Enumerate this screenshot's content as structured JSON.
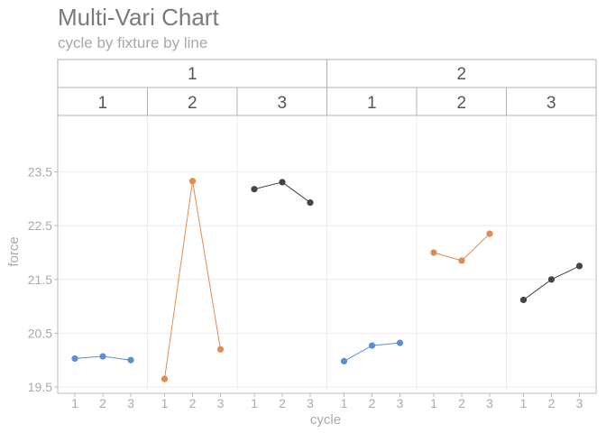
{
  "title": "Multi-Vari Chart",
  "subtitle": "cycle by fixture by line",
  "colors": {
    "fixture_1": "#5b8ed6",
    "fixture_2": "#e08b4f",
    "fixture_3": "#444444",
    "grid": "#ececec",
    "strip_border": "#b0b0b0",
    "text": "#aaaaaa"
  },
  "chart_data": {
    "type": "line",
    "title": "Multi-Vari Chart",
    "subtitle": "cycle by fixture by line",
    "xlabel": "cycle",
    "ylabel": "force",
    "ylim": [
      19.45,
      24.55
    ],
    "yticks": [
      19.5,
      20.5,
      21.5,
      22.5,
      23.5
    ],
    "ytick_labels": [
      "19.5",
      "20.5",
      "21.5",
      "22.5",
      "23.5"
    ],
    "x": [
      1,
      2,
      3
    ],
    "x_tick_labels": [
      "1",
      "2",
      "3"
    ],
    "panels": [
      {
        "line": "1",
        "fixture": "1",
        "values": [
          20.03,
          20.07,
          20.0
        ]
      },
      {
        "line": "1",
        "fixture": "2",
        "values": [
          19.65,
          23.33,
          20.2
        ]
      },
      {
        "line": "1",
        "fixture": "3",
        "values": [
          23.18,
          23.31,
          22.93
        ]
      },
      {
        "line": "2",
        "fixture": "1",
        "values": [
          19.98,
          20.27,
          20.32
        ]
      },
      {
        "line": "2",
        "fixture": "2",
        "values": [
          22.0,
          21.85,
          22.35
        ]
      },
      {
        "line": "2",
        "fixture": "3",
        "values": [
          21.12,
          21.5,
          21.75
        ]
      }
    ],
    "grid": true,
    "legend": "none"
  }
}
